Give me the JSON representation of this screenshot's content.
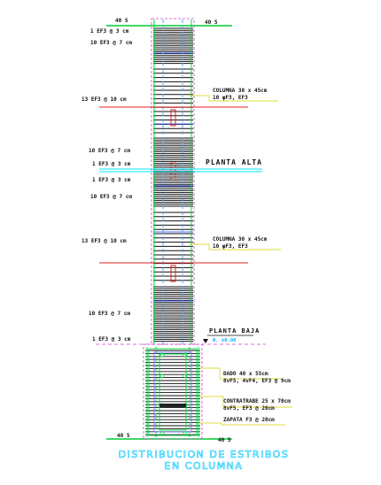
{
  "drawing": {
    "top_dim_left": "40 5",
    "top_dim_right": "40 5",
    "bottom_dim_left": "40 5",
    "bottom_dim_right": "40 5",
    "stirrup_labels": [
      "1 EF3 @ 3 cm",
      "10 EF3 @ 7 cm",
      "13 EF3 @ 10 cm",
      "10 EF3 @ 7 cm",
      "1 EF3 @ 3 cm",
      "1 EF3 @ 3 cm",
      "10 EF3 @ 7 cm",
      "13 EF3 @ 10 cm",
      "10 EF3 @ 7 cm",
      "1 EF3 @ 3 cm"
    ],
    "column_upper": {
      "line1": "COLUMNA 30 x 45cm",
      "line2": "10 φF3, EF3"
    },
    "column_lower": {
      "line1": "COLUMNA 30 x 45cm",
      "line2": "10 φF3, EF3"
    },
    "planta_alta": "PLANTA ALTA",
    "planta_baja": "PLANTA BAJA",
    "level_mark": "N. ±0.00",
    "dado": {
      "line1": "DADO 40 x 55cm",
      "line2": "8vF5, 4vF4, EF3 @ 9cm"
    },
    "contratrabe": {
      "line1": "CONTRATRABE 25 x 70cm",
      "line2": "8vF5, EF3 @ 20cm"
    },
    "zapata": "ZAPATA F3 @ 20cm",
    "title_line1": "DISTRIBUCION DE ESTRIBOS",
    "title_line2": "EN COLUMNA"
  }
}
